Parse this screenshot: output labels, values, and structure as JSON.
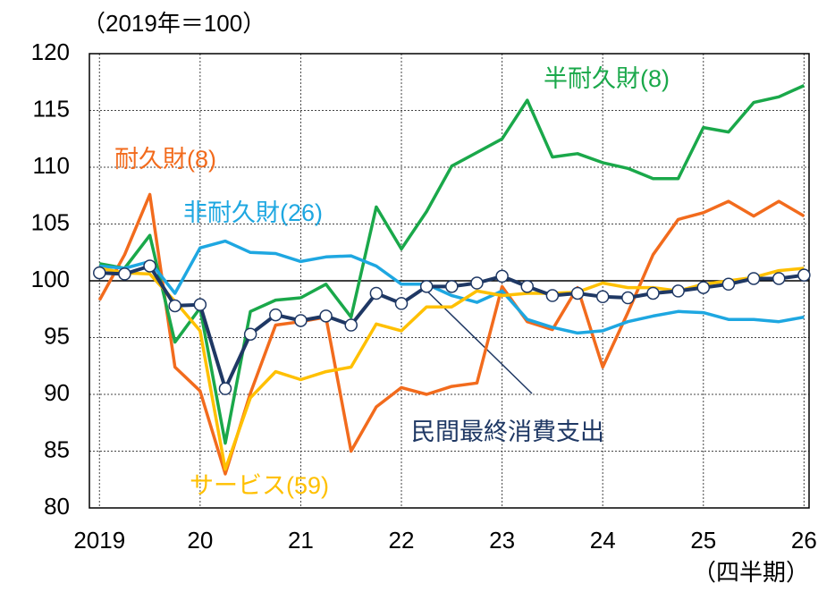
{
  "chart_data": {
    "type": "line",
    "y_unit_label": "（2019年＝100）",
    "x_unit_label": "（四半期）",
    "x": [
      2019,
      2019.25,
      2019.5,
      2019.75,
      2020,
      2020.25,
      2020.5,
      2020.75,
      2021,
      2021.25,
      2021.5,
      2021.75,
      2022,
      2022.25,
      2022.5,
      2022.75,
      2023,
      2023.25,
      2023.5,
      2023.75,
      2024,
      2024.25,
      2024.5,
      2024.75,
      2025,
      2025.25,
      2025.5,
      2025.75,
      2026
    ],
    "xlim": [
      2018.9,
      2026.05
    ],
    "xticks": [
      2019,
      {
        "value": 2020,
        "label": "20"
      },
      {
        "value": 2021,
        "label": "21"
      },
      {
        "value": 2022,
        "label": "22"
      },
      {
        "value": 2023,
        "label": "23"
      },
      {
        "value": 2024,
        "label": "24"
      },
      {
        "value": 2025,
        "label": "25"
      },
      {
        "value": 2026,
        "label": "26"
      }
    ],
    "ylim": [
      80,
      120
    ],
    "yticks": [
      80,
      85,
      90,
      95,
      100,
      105,
      110,
      115,
      120
    ],
    "grid": true,
    "reference_line": 100,
    "series": [
      {
        "name": "耐久財(8)",
        "color": "#f26b1d",
        "values": [
          98.3,
          102.3,
          107.6,
          92.4,
          90.3,
          83.0,
          90.1,
          96.1,
          96.4,
          96.8,
          85.0,
          88.9,
          90.6,
          90.0,
          90.7,
          91.0,
          99.5,
          96.4,
          95.7,
          99.4,
          92.4,
          97.2,
          102.3,
          105.4,
          106.0,
          107.0,
          105.7,
          107.0,
          105.7
        ]
      },
      {
        "name": "半耐久財(8)",
        "color": "#1aa84a",
        "values": [
          101.5,
          101.1,
          104.0,
          94.6,
          97.6,
          85.7,
          97.3,
          98.3,
          98.5,
          99.7,
          96.8,
          106.5,
          102.8,
          106.1,
          110.1,
          111.3,
          112.5,
          115.9,
          110.9,
          111.2,
          110.4,
          109.9,
          109.0,
          109.0,
          113.5,
          113.1,
          115.7,
          116.2,
          117.2
        ]
      },
      {
        "name": "非耐久財(26)",
        "color": "#1ea7e1",
        "values": [
          101.3,
          101.1,
          101.7,
          98.9,
          102.9,
          103.5,
          102.5,
          102.4,
          101.7,
          102.1,
          102.2,
          101.3,
          99.7,
          99.7,
          98.7,
          98.1,
          99.1,
          96.6,
          95.9,
          95.4,
          95.6,
          96.4,
          96.9,
          97.3,
          97.2,
          96.6,
          96.6,
          96.4,
          96.8
        ]
      },
      {
        "name": "サービス(59)",
        "color": "#ffc000",
        "values": [
          101.1,
          100.7,
          100.6,
          98.2,
          95.6,
          83.4,
          89.7,
          92.0,
          91.3,
          92.0,
          92.4,
          96.2,
          95.6,
          97.7,
          97.7,
          99.1,
          98.7,
          98.9,
          98.9,
          99.0,
          99.8,
          99.4,
          99.4,
          99.1,
          99.7,
          100.0,
          100.3,
          100.9,
          101.1
        ]
      },
      {
        "name": "民間最終消費支出",
        "color": "#1f3864",
        "markers": true,
        "values": [
          100.7,
          100.6,
          101.3,
          97.8,
          97.9,
          90.5,
          95.3,
          97.0,
          96.5,
          96.9,
          96.1,
          98.9,
          98.0,
          99.5,
          99.5,
          99.8,
          100.4,
          99.5,
          98.7,
          98.9,
          98.6,
          98.5,
          98.9,
          99.1,
          99.4,
          99.7,
          100.2,
          100.2,
          100.5
        ]
      }
    ]
  }
}
